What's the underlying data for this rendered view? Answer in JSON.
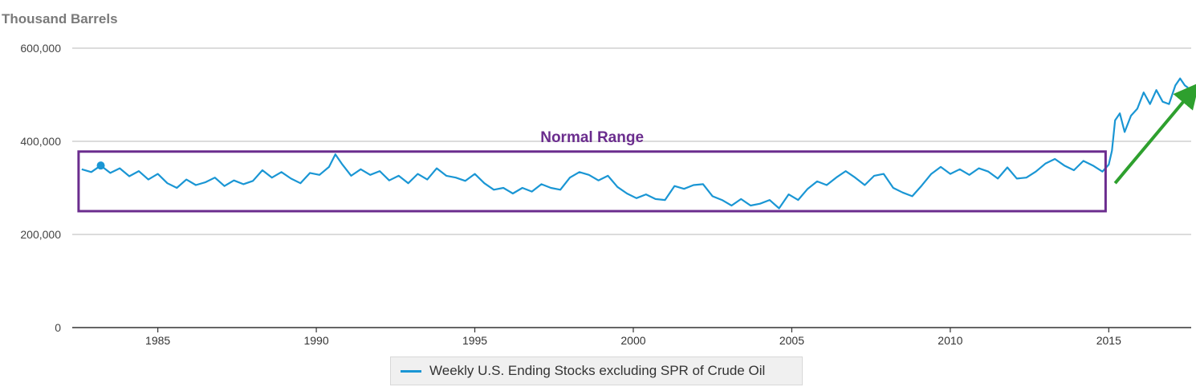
{
  "chart_data": {
    "type": "line",
    "ylabel": "Thousand Barrels",
    "ylim": [
      0,
      600000
    ],
    "y_ticks": [
      "0",
      "200,000",
      "400,000",
      "600,000"
    ],
    "y_tick_values": [
      0,
      200000,
      400000,
      600000
    ],
    "xlim": [
      1982.3,
      2017.6
    ],
    "x_ticks": [
      "1985",
      "1990",
      "1995",
      "2000",
      "2005",
      "2010",
      "2015"
    ],
    "x_tick_values": [
      1985,
      1990,
      1995,
      2000,
      2005,
      2010,
      2015
    ],
    "grid": true,
    "series": [
      {
        "name": "Weekly U.S. Ending Stocks excluding SPR of Crude Oil",
        "color": "#1a96d4",
        "x": [
          1982.6,
          1982.9,
          1983.2,
          1983.5,
          1983.8,
          1984.1,
          1984.4,
          1984.7,
          1985.0,
          1985.3,
          1985.6,
          1985.9,
          1986.2,
          1986.5,
          1986.8,
          1987.1,
          1987.4,
          1987.7,
          1988.0,
          1988.3,
          1988.6,
          1988.9,
          1989.2,
          1989.5,
          1989.8,
          1990.1,
          1990.4,
          1990.6,
          1990.8,
          1991.1,
          1991.4,
          1991.7,
          1992.0,
          1992.3,
          1992.6,
          1992.9,
          1993.2,
          1993.5,
          1993.8,
          1994.1,
          1994.4,
          1994.7,
          1995.0,
          1995.3,
          1995.6,
          1995.9,
          1996.2,
          1996.5,
          1996.8,
          1997.1,
          1997.4,
          1997.7,
          1998.0,
          1998.3,
          1998.6,
          1998.9,
          1999.2,
          1999.5,
          1999.8,
          2000.1,
          2000.4,
          2000.7,
          2001.0,
          2001.3,
          2001.6,
          2001.9,
          2002.2,
          2002.5,
          2002.8,
          2003.1,
          2003.4,
          2003.7,
          2004.0,
          2004.3,
          2004.6,
          2004.9,
          2005.2,
          2005.5,
          2005.8,
          2006.1,
          2006.4,
          2006.7,
          2007.0,
          2007.3,
          2007.6,
          2007.9,
          2008.2,
          2008.5,
          2008.8,
          2009.1,
          2009.4,
          2009.7,
          2010.0,
          2010.3,
          2010.6,
          2010.9,
          2011.2,
          2011.5,
          2011.8,
          2012.1,
          2012.4,
          2012.7,
          2013.0,
          2013.3,
          2013.6,
          2013.9,
          2014.2,
          2014.5,
          2014.8,
          2015.0,
          2015.1,
          2015.2,
          2015.35,
          2015.5,
          2015.7,
          2015.9,
          2016.1,
          2016.3,
          2016.5,
          2016.7,
          2016.9,
          2017.1,
          2017.25,
          2017.4,
          2017.5
        ],
        "values": [
          340000,
          334000,
          348000,
          332000,
          342000,
          325000,
          336000,
          318000,
          330000,
          310000,
          300000,
          318000,
          306000,
          312000,
          322000,
          304000,
          316000,
          308000,
          315000,
          338000,
          322000,
          334000,
          320000,
          310000,
          332000,
          328000,
          345000,
          372000,
          352000,
          326000,
          340000,
          328000,
          336000,
          316000,
          326000,
          310000,
          330000,
          318000,
          342000,
          326000,
          322000,
          315000,
          330000,
          310000,
          296000,
          300000,
          288000,
          300000,
          292000,
          308000,
          300000,
          296000,
          322000,
          334000,
          328000,
          316000,
          326000,
          302000,
          288000,
          278000,
          286000,
          276000,
          274000,
          304000,
          298000,
          306000,
          308000,
          282000,
          274000,
          262000,
          276000,
          262000,
          266000,
          274000,
          256000,
          286000,
          274000,
          298000,
          314000,
          306000,
          322000,
          336000,
          322000,
          306000,
          326000,
          330000,
          300000,
          290000,
          282000,
          305000,
          330000,
          345000,
          330000,
          340000,
          328000,
          342000,
          335000,
          320000,
          344000,
          320000,
          322000,
          335000,
          352000,
          362000,
          348000,
          338000,
          358000,
          348000,
          335000,
          350000,
          380000,
          445000,
          460000,
          420000,
          455000,
          470000,
          505000,
          480000,
          510000,
          485000,
          480000,
          520000,
          535000,
          520000,
          515000
        ]
      }
    ],
    "annotations": [
      {
        "text": "Normal  Range",
        "color": "#6b2d8e",
        "box": {
          "x_from": 1982.5,
          "x_to": 2014.9,
          "y_from": 250000,
          "y_to": 378000
        }
      },
      {
        "kind": "arrow",
        "color": "#2ea02e",
        "from": {
          "x": 2015.2,
          "y": 310000
        },
        "to": {
          "x": 2017.6,
          "y": 505000
        }
      }
    ],
    "legend_position": "bottom-center"
  }
}
